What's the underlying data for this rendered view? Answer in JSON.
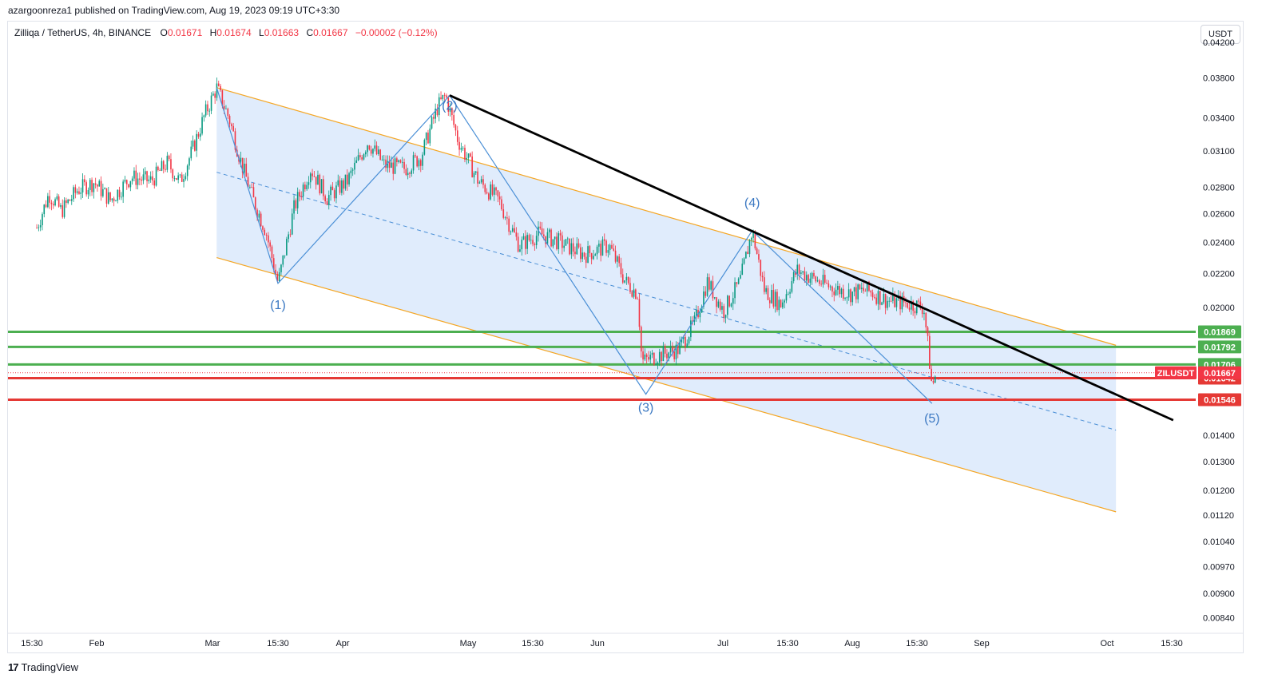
{
  "publisher_line": "azargoonreza1 published on TradingView.com, Aug 19, 2023 09:19 UTC+3:30",
  "legend": {
    "symbol": "Zilliqa / TetherUS, 4h, BINANCE",
    "o_label": "O",
    "o": "0.01671",
    "h_label": "H",
    "h": "0.01674",
    "l_label": "L",
    "l": "0.01663",
    "c_label": "C",
    "c": "0.01667",
    "change": "−0.00002 (−0.12%)"
  },
  "currency": "USDT",
  "brand": "TradingView",
  "colors": {
    "up": "#089981",
    "down": "#f23645",
    "channel_fill": "#dbe9fb",
    "channel_edge": "#f5a623",
    "wave": "#4a8fd6",
    "support_green": "#4caf50",
    "support_red": "#e53935",
    "trend": "#000000"
  },
  "chart_data": {
    "type": "candlestick",
    "scale": "log",
    "ylim": [
      0.0081,
      0.0445
    ],
    "x_ticks": [
      "15:30",
      "Feb",
      "Mar",
      "15:30",
      "Apr",
      "May",
      "15:30",
      "Jun",
      "Jul",
      "15:30",
      "Aug",
      "15:30",
      "Sep",
      "Oct",
      "15:30"
    ],
    "y_ticks": [
      "0.04200",
      "0.03800",
      "0.03400",
      "0.03100",
      "0.02800",
      "0.02600",
      "0.02400",
      "0.02200",
      "0.02000",
      "0.01400",
      "0.01300",
      "0.01200",
      "0.01120",
      "0.01040",
      "0.00970",
      "0.00900",
      "0.00840"
    ],
    "price_path": [
      {
        "x": "Jan 10",
        "y": 0.025
      },
      {
        "x": "Jan 13",
        "y": 0.0275
      },
      {
        "x": "Jan 16",
        "y": 0.0262
      },
      {
        "x": "Jan 20",
        "y": 0.0278
      },
      {
        "x": "Jan 24",
        "y": 0.0284
      },
      {
        "x": "Jan 28",
        "y": 0.027
      },
      {
        "x": "Feb 2",
        "y": 0.0288
      },
      {
        "x": "Feb 7",
        "y": 0.0285
      },
      {
        "x": "Feb 11",
        "y": 0.03
      },
      {
        "x": "Feb 14",
        "y": 0.0284
      },
      {
        "x": "Feb 17",
        "y": 0.031
      },
      {
        "x": "Feb 20",
        "y": 0.0342
      },
      {
        "x": "Feb 23",
        "y": 0.037
      },
      {
        "x": "Feb 26",
        "y": 0.034
      },
      {
        "x": "Mar 1",
        "y": 0.03
      },
      {
        "x": "Mar 4",
        "y": 0.027
      },
      {
        "x": "Mar 7",
        "y": 0.0248
      },
      {
        "x": "Mar 10",
        "y": 0.0214
      },
      {
        "x": "Mar 14",
        "y": 0.0265
      },
      {
        "x": "Mar 18",
        "y": 0.0295
      },
      {
        "x": "Mar 22",
        "y": 0.0272
      },
      {
        "x": "Mar 27",
        "y": 0.0285
      },
      {
        "x": "Apr 1",
        "y": 0.0318
      },
      {
        "x": "Apr 5",
        "y": 0.0298
      },
      {
        "x": "Apr 10",
        "y": 0.0295
      },
      {
        "x": "Apr 14",
        "y": 0.0305
      },
      {
        "x": "Apr 18",
        "y": 0.035
      },
      {
        "x": "Apr 20",
        "y": 0.0362
      },
      {
        "x": "Apr 23",
        "y": 0.032
      },
      {
        "x": "Apr 28",
        "y": 0.0285
      },
      {
        "x": "May 3",
        "y": 0.027
      },
      {
        "x": "May 8",
        "y": 0.0238
      },
      {
        "x": "May 13",
        "y": 0.0246
      },
      {
        "x": "May 18",
        "y": 0.024
      },
      {
        "x": "May 24",
        "y": 0.0232
      },
      {
        "x": "May 30",
        "y": 0.0238
      },
      {
        "x": "Jun 3",
        "y": 0.0215
      },
      {
        "x": "Jun 6",
        "y": 0.0208
      },
      {
        "x": "Jun 7",
        "y": 0.0172
      },
      {
        "x": "Jun 11",
        "y": 0.0175
      },
      {
        "x": "Jun 16",
        "y": 0.0178
      },
      {
        "x": "Jun 20",
        "y": 0.0192
      },
      {
        "x": "Jun 23",
        "y": 0.0215
      },
      {
        "x": "Jun 27",
        "y": 0.0198
      },
      {
        "x": "Jul 1",
        "y": 0.0215
      },
      {
        "x": "Jul 4",
        "y": 0.0248
      },
      {
        "x": "Jul 7",
        "y": 0.021
      },
      {
        "x": "Jul 11",
        "y": 0.0202
      },
      {
        "x": "Jul 15",
        "y": 0.0222
      },
      {
        "x": "Jul 18",
        "y": 0.0218
      },
      {
        "x": "Jul 23",
        "y": 0.0212
      },
      {
        "x": "Jul 28",
        "y": 0.0208
      },
      {
        "x": "Aug 1",
        "y": 0.021
      },
      {
        "x": "Aug 6",
        "y": 0.0204
      },
      {
        "x": "Aug 12",
        "y": 0.0202
      },
      {
        "x": "Aug 15",
        "y": 0.02
      },
      {
        "x": "Aug 16",
        "y": 0.018
      },
      {
        "x": "Aug 17",
        "y": 0.016
      },
      {
        "x": "Aug 18",
        "y": 0.0167
      }
    ],
    "channel": {
      "upper": [
        {
          "x": "Feb 23",
          "y": 0.037
        },
        {
          "x": "Oct 1",
          "y": 0.018
        }
      ],
      "lower": [
        {
          "x": "Feb 23",
          "y": 0.023
        },
        {
          "x": "Oct 1",
          "y": 0.0113
        }
      ],
      "mid": [
        {
          "x": "Feb 23",
          "y": 0.0292
        },
        {
          "x": "Oct 1",
          "y": 0.0142
        }
      ]
    },
    "trendline": [
      {
        "x": "Apr 21",
        "y": 0.0362
      },
      {
        "x": "Oct 15",
        "y": 0.0146
      }
    ],
    "waves": [
      {
        "label": "(1)",
        "x": "Mar 10",
        "y": 0.0214
      },
      {
        "label": "(2)",
        "x": "Apr 21",
        "y": 0.0362
      },
      {
        "label": "(3)",
        "x": "Jun 8",
        "y": 0.0157
      },
      {
        "label": "(4)",
        "x": "Jul 4",
        "y": 0.0248
      },
      {
        "label": "(5)",
        "x": "Aug 17",
        "y": 0.0153
      }
    ],
    "wave_start": {
      "x": "Feb 23",
      "y": 0.037
    },
    "levels": [
      {
        "value": 0.01869,
        "label": "0.01869",
        "color": "#4caf50"
      },
      {
        "value": 0.01792,
        "label": "0.01792",
        "color": "#4caf50"
      },
      {
        "value": 0.01706,
        "label": "0.01706",
        "color": "#4caf50"
      },
      {
        "value": 0.01642,
        "label": "0.01642",
        "color": "#e53935"
      },
      {
        "value": 0.01546,
        "label": "0.01546",
        "color": "#e53935"
      }
    ],
    "last_price": {
      "symbol": "ZILUSDT",
      "value": 0.01667,
      "label": "0.01667"
    }
  }
}
